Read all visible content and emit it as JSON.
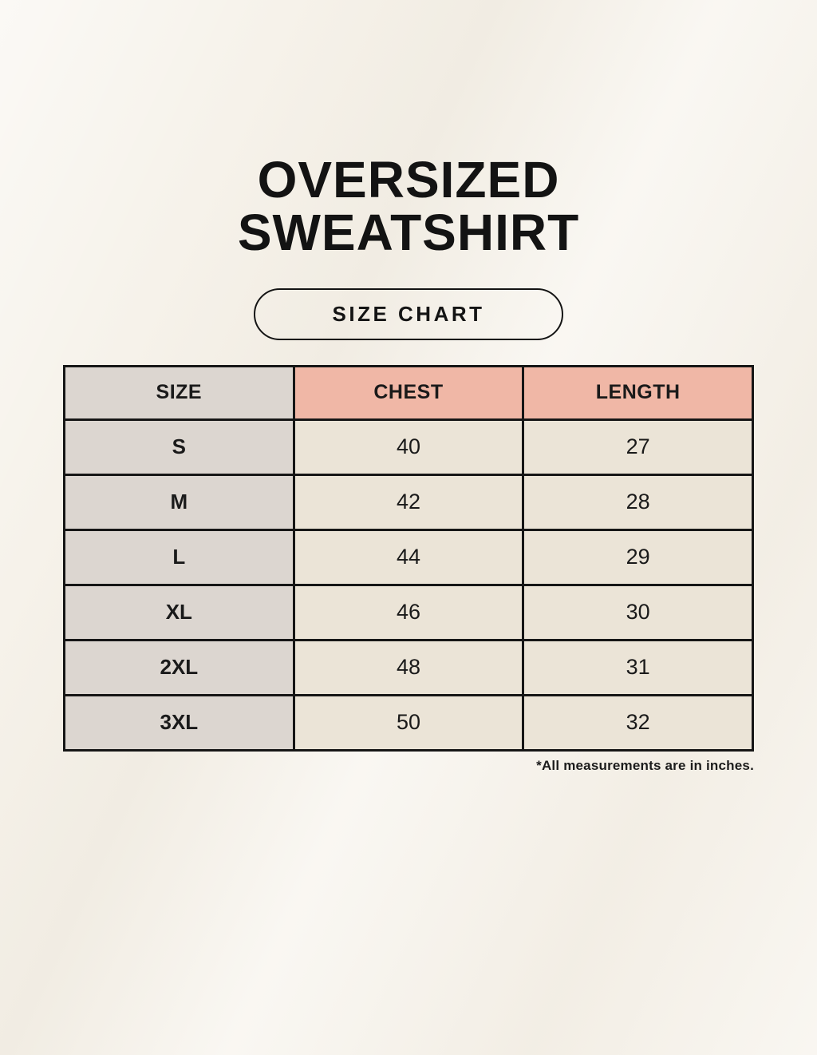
{
  "header": {
    "title_line1": "OVERSIZED",
    "title_line2": "SWEATSHIRT",
    "badge_label": "SIZE CHART"
  },
  "footnote": "*All measurements are in inches.",
  "colors": {
    "background": "#f6f2ea",
    "size_column_bg": "#dcd6d0",
    "header_accent_bg": "#f0b7a6",
    "data_cell_bg": "#ebe4d7",
    "table_border": "#161616",
    "text": "#1a1a1a"
  },
  "chart_data": {
    "type": "table",
    "title": "OVERSIZED SWEATSHIRT SIZE CHART",
    "columns": [
      "SIZE",
      "CHEST",
      "LENGTH"
    ],
    "rows": [
      [
        "S",
        "40",
        "27"
      ],
      [
        "M",
        "42",
        "28"
      ],
      [
        "L",
        "44",
        "29"
      ],
      [
        "XL",
        "46",
        "30"
      ],
      [
        "2XL",
        "48",
        "31"
      ],
      [
        "3XL",
        "50",
        "32"
      ]
    ],
    "units": "inches"
  }
}
